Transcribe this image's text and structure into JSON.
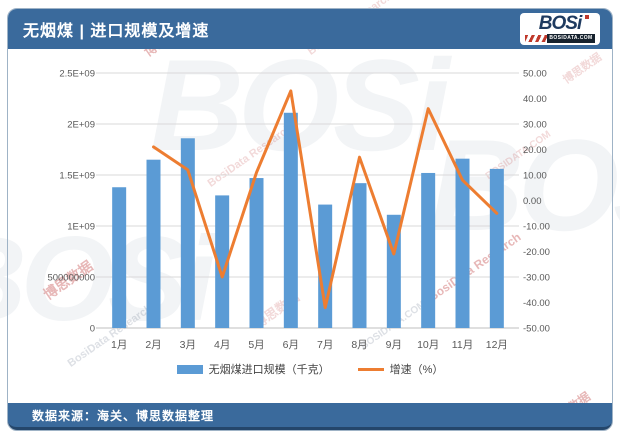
{
  "header": {
    "title": "无烟煤 | 进口规模及增速",
    "logo": {
      "text": "BOSi",
      "site": "BOSIDATA.COM"
    }
  },
  "footer": {
    "source": "数据来源：海关、博思数据整理"
  },
  "watermark": {
    "texts": [
      "博思数据",
      "BosiData Research",
      "BOSIDATA.COM"
    ]
  },
  "colors": {
    "header_bg": "#3A6A9C",
    "bar": "#5B9BD5",
    "line": "#ED7D31",
    "grid": "#D9D9D9",
    "baseline": "#BFBFBF",
    "axis_text": "#595959"
  },
  "chart_data": {
    "type": "bar+line",
    "categories": [
      "1月",
      "2月",
      "3月",
      "4月",
      "5月",
      "6月",
      "7月",
      "8月",
      "9月",
      "10月",
      "11月",
      "12月"
    ],
    "series": [
      {
        "name": "无烟煤进口规模（千克）",
        "type": "bar",
        "axis": "left",
        "values": [
          1380000000,
          1650000000,
          1860000000,
          1300000000,
          1470000000,
          2110000000,
          1210000000,
          1420000000,
          1110000000,
          1520000000,
          1660000000,
          1560000000
        ]
      },
      {
        "name": "增速（%）",
        "type": "line",
        "axis": "right",
        "values": [
          null,
          21,
          12,
          -30,
          11,
          43,
          -42,
          17,
          -21,
          36,
          8,
          -5
        ]
      }
    ],
    "left_axis": {
      "min": 0,
      "max": 2500000000,
      "ticks": [
        "2.5E+09",
        "2E+09",
        "1.5E+09",
        "1E+09",
        "500000000",
        "0"
      ]
    },
    "right_axis": {
      "min": -50,
      "max": 50,
      "ticks": [
        "50.00",
        "40.00",
        "30.00",
        "20.00",
        "10.00",
        "0.00",
        "-10.00",
        "-20.00",
        "-30.00",
        "-40.00",
        "-50.00"
      ]
    },
    "legend_position": "bottom",
    "grid": true
  }
}
